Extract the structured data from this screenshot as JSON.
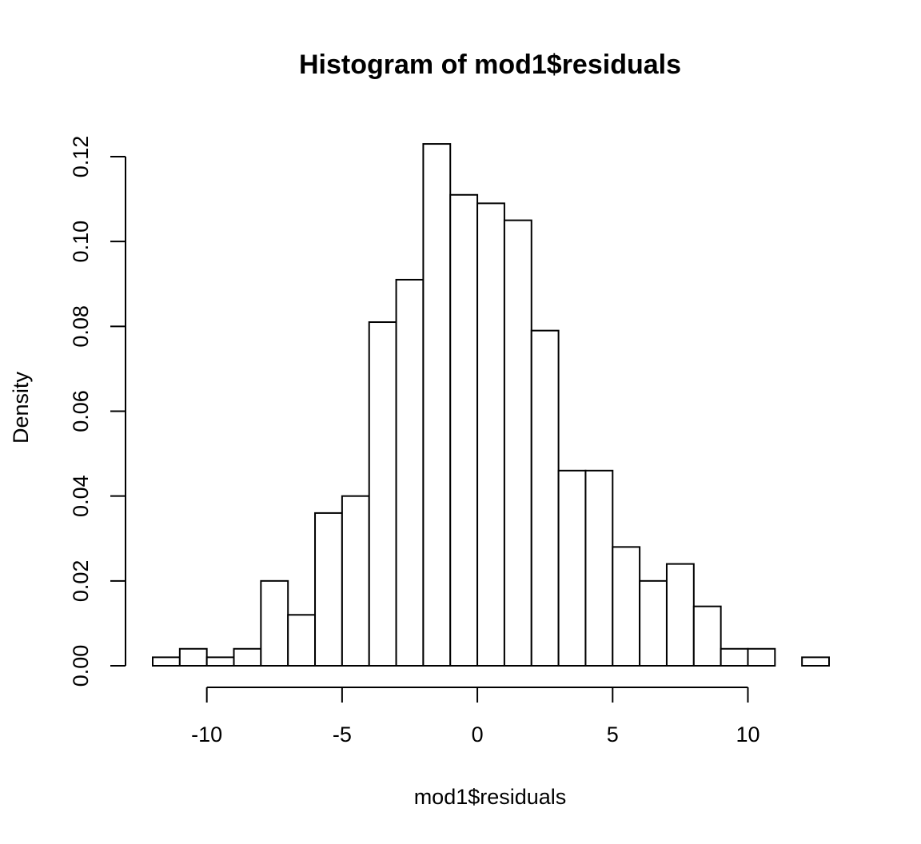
{
  "chart_data": {
    "type": "bar",
    "title": "Histogram of mod1$residuals",
    "xlabel": "mod1$residuals",
    "ylabel": "Density",
    "bin_width": 1,
    "bin_edges": [
      -12,
      -11,
      -10,
      -9,
      -8,
      -7,
      -6,
      -5,
      -4,
      -3,
      -2,
      -1,
      0,
      1,
      2,
      3,
      4,
      5,
      6,
      7,
      8,
      9,
      10,
      11,
      12,
      13
    ],
    "values": [
      0.002,
      0.004,
      0.002,
      0.004,
      0.02,
      0.012,
      0.036,
      0.04,
      0.081,
      0.091,
      0.123,
      0.111,
      0.109,
      0.105,
      0.079,
      0.046,
      0.046,
      0.028,
      0.02,
      0.024,
      0.014,
      0.004,
      0.004,
      0.0,
      0.002
    ],
    "xlim": [
      -12,
      13
    ],
    "ylim": [
      0,
      0.12
    ],
    "x_ticks": [
      -10,
      -5,
      0,
      5,
      10
    ],
    "x_tick_labels": [
      "-10",
      "-5",
      "0",
      "5",
      "10"
    ],
    "y_ticks": [
      0,
      0.02,
      0.04,
      0.06,
      0.08,
      0.1,
      0.12
    ],
    "y_tick_labels": [
      "0.00",
      "0.02",
      "0.04",
      "0.06",
      "0.08",
      "0.10",
      "0.12"
    ],
    "grid": false,
    "colors": {
      "bar_fill": "#ffffff",
      "bar_stroke": "#000000"
    }
  }
}
